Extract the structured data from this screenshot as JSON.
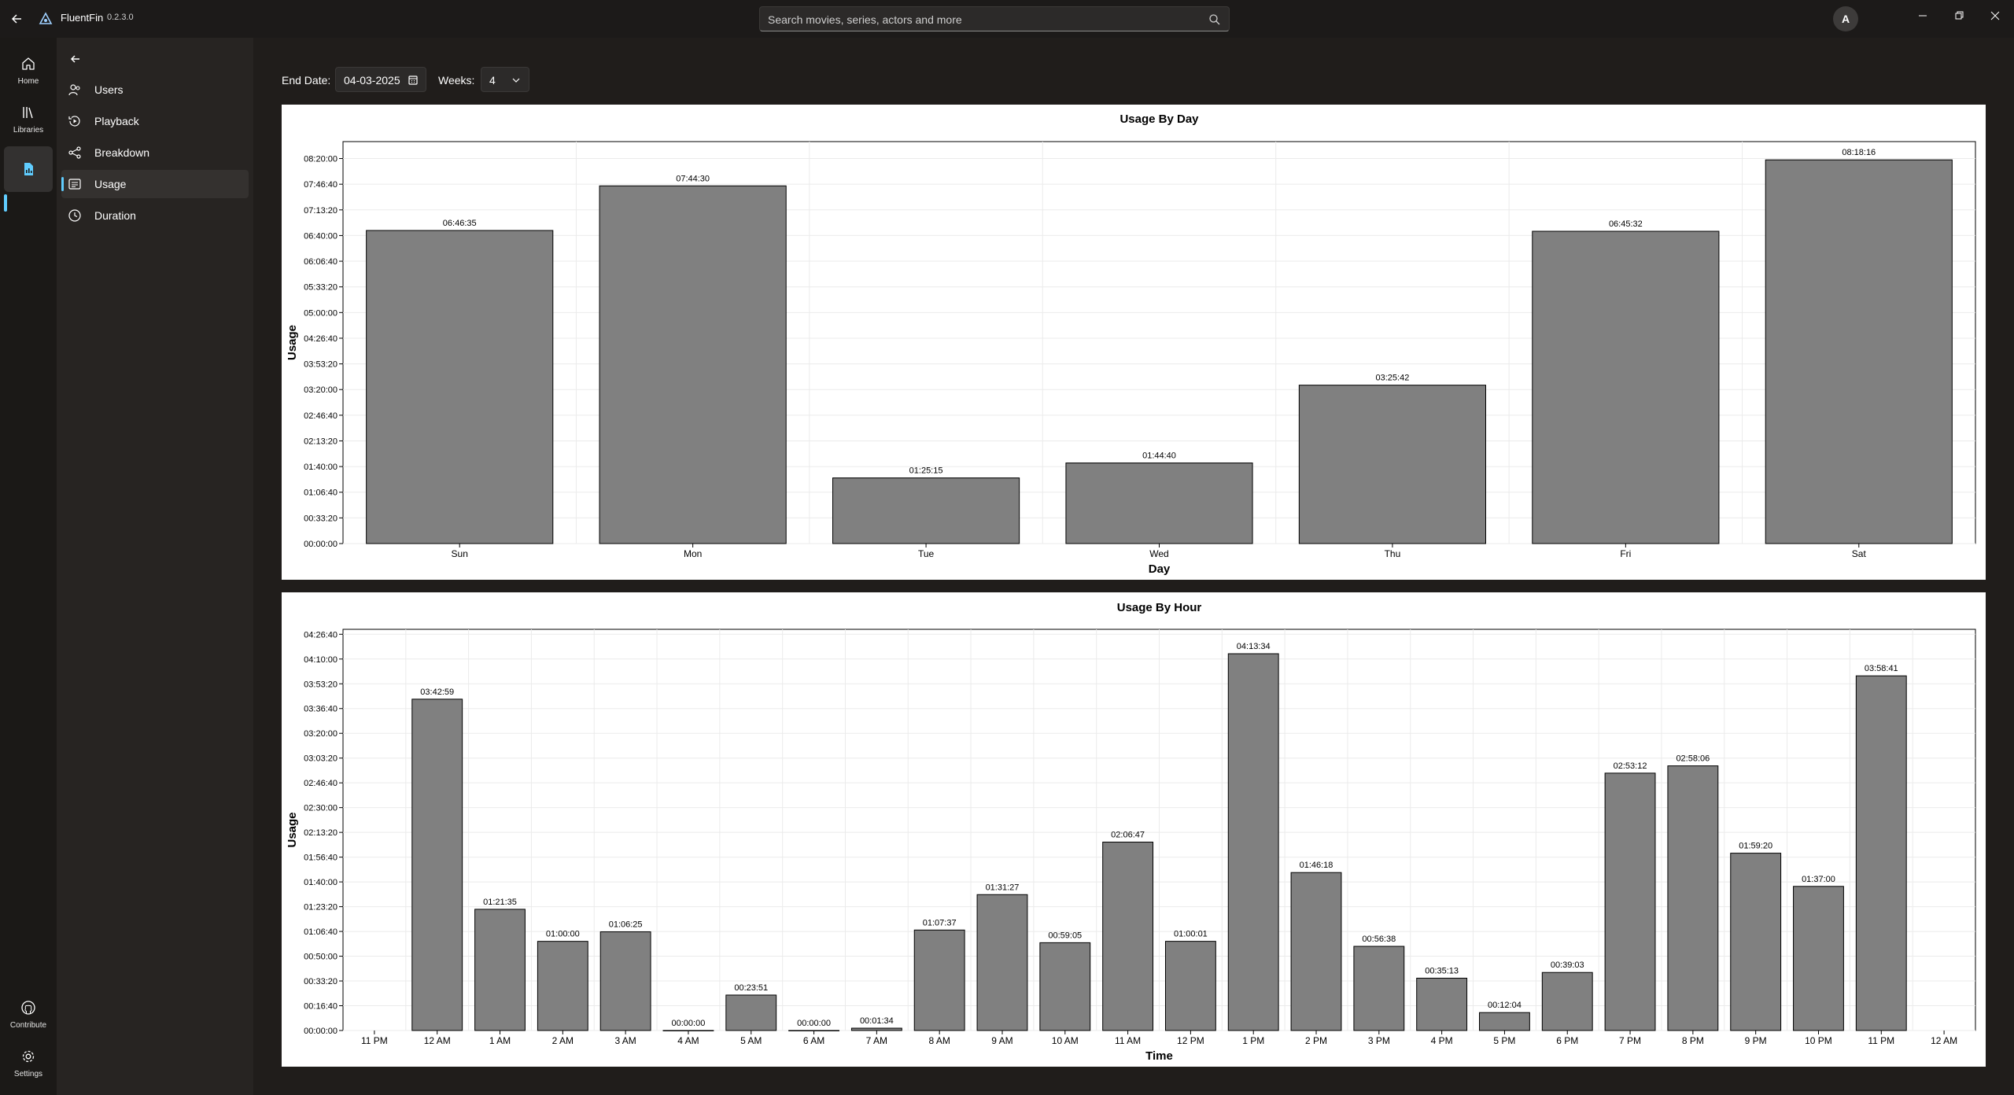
{
  "app": {
    "name": "FluentFin",
    "version": "0.2.3.0"
  },
  "search": {
    "placeholder": "Search movies, series, actors and more"
  },
  "user": {
    "avatar_letter": "A"
  },
  "rail": {
    "items": [
      {
        "label": "Home",
        "icon": "home-icon"
      },
      {
        "label": "Libraries",
        "icon": "library-icon"
      },
      {
        "label": "",
        "icon": "dashboard-icon",
        "active": true
      }
    ],
    "bottom": [
      {
        "label": "Contribute",
        "icon": "github-icon"
      },
      {
        "label": "Settings",
        "icon": "gear-icon"
      }
    ]
  },
  "subnav": {
    "items": [
      {
        "label": "Users",
        "icon": "users-icon"
      },
      {
        "label": "Playback",
        "icon": "playback-icon"
      },
      {
        "label": "Breakdown",
        "icon": "breakdown-icon"
      },
      {
        "label": "Usage",
        "icon": "usage-icon",
        "active": true
      },
      {
        "label": "Duration",
        "icon": "clock-icon"
      }
    ]
  },
  "filters": {
    "end_date_label": "End Date:",
    "end_date": "04-03-2025",
    "weeks_label": "Weeks:",
    "weeks": "4"
  },
  "colors": {
    "bar": "#808080",
    "bar_stroke": "#000000",
    "accent": "#60cdff"
  },
  "chart_data": [
    {
      "type": "bar",
      "title": "Usage By Day",
      "xlabel": "Day",
      "ylabel": "Usage",
      "categories": [
        "Sun",
        "Mon",
        "Tue",
        "Wed",
        "Thu",
        "Fri",
        "Sat"
      ],
      "values": [
        "06:46:35",
        "07:44:30",
        "01:25:15",
        "01:44:40",
        "03:25:42",
        "06:45:32",
        "08:18:16"
      ],
      "yticks": [
        "00:00:00",
        "00:33:20",
        "01:06:40",
        "01:40:00",
        "02:13:20",
        "02:46:40",
        "03:20:00",
        "03:53:20",
        "04:26:40",
        "05:00:00",
        "05:33:20",
        "06:06:40",
        "06:40:00",
        "07:13:20",
        "07:46:40",
        "08:20:00"
      ],
      "ylim": [
        "00:00:00",
        "08:42:00"
      ],
      "grid": true
    },
    {
      "type": "bar",
      "title": "Usage By Hour",
      "xlabel": "Time",
      "ylabel": "Usage",
      "xticks": [
        "11 PM",
        "12 AM",
        "1 AM",
        "2 AM",
        "3 AM",
        "4 AM",
        "5 AM",
        "6 AM",
        "7 AM",
        "8 AM",
        "9 AM",
        "10 AM",
        "11 AM",
        "12 PM",
        "1 PM",
        "2 PM",
        "3 PM",
        "4 PM",
        "5 PM",
        "6 PM",
        "7 PM",
        "8 PM",
        "9 PM",
        "10 PM",
        "11 PM",
        "12 AM"
      ],
      "categories": [
        "12 AM",
        "1 AM",
        "2 AM",
        "3 AM",
        "4 AM",
        "5 AM",
        "6 AM",
        "7 AM",
        "8 AM",
        "9 AM",
        "10 AM",
        "11 AM",
        "12 PM",
        "1 PM",
        "2 PM",
        "3 PM",
        "4 PM",
        "5 PM",
        "6 PM",
        "7 PM",
        "8 PM",
        "9 PM",
        "10 PM",
        "11 PM"
      ],
      "values": [
        "03:42:59",
        "01:21:35",
        "01:00:00",
        "01:06:25",
        "00:00:00",
        "00:23:51",
        "00:00:00",
        "00:01:34",
        "01:07:37",
        "01:31:27",
        "00:59:05",
        "02:06:47",
        "01:00:01",
        "04:13:34",
        "01:46:18",
        "00:56:38",
        "00:35:13",
        "00:12:04",
        "00:39:03",
        "02:53:12",
        "02:58:06",
        "01:59:20",
        "01:37:00",
        "03:58:41"
      ],
      "yticks": [
        "00:00:00",
        "00:16:40",
        "00:33:20",
        "00:50:00",
        "01:06:40",
        "01:23:20",
        "01:40:00",
        "01:56:40",
        "02:13:20",
        "02:30:00",
        "02:46:40",
        "03:03:20",
        "03:20:00",
        "03:36:40",
        "03:53:20",
        "04:10:00",
        "04:26:40"
      ],
      "ylim": [
        "00:00:00",
        "04:30:00"
      ],
      "grid": true
    }
  ]
}
